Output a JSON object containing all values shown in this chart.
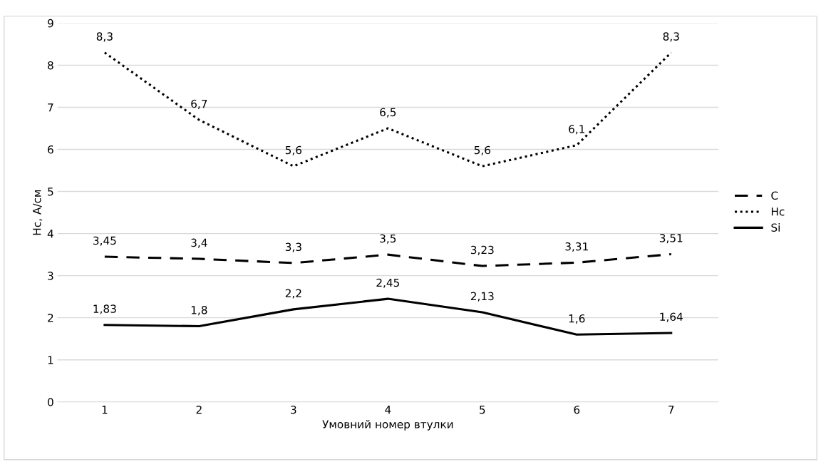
{
  "chart_data": {
    "type": "line",
    "xlabel": "Умовний номер втулки",
    "ylabel": "Hc, А/см",
    "categories": [
      "1",
      "2",
      "3",
      "4",
      "5",
      "6",
      "7"
    ],
    "series": [
      {
        "name": "C",
        "color": "#000000",
        "line_style": "dashed",
        "values": [
          3.45,
          3.4,
          3.3,
          3.5,
          3.23,
          3.31,
          3.51
        ],
        "value_labels": [
          "3,45",
          "3,4",
          "3,3",
          "3,5",
          "3,23",
          "3,31",
          "3,51"
        ]
      },
      {
        "name": "Hc",
        "color": "#000000",
        "line_style": "dotted",
        "values": [
          8.3,
          6.7,
          5.6,
          6.5,
          5.6,
          6.1,
          8.3
        ],
        "value_labels": [
          "8,3",
          "6,7",
          "5,6",
          "6,5",
          "5,6",
          "6,1",
          "8,3"
        ]
      },
      {
        "name": "Si",
        "color": "#000000",
        "line_style": "solid",
        "values": [
          1.83,
          1.8,
          2.2,
          2.45,
          2.13,
          1.6,
          1.64
        ],
        "value_labels": [
          "1,83",
          "1,8",
          "2,2",
          "2,45",
          "2,13",
          "1,6",
          "1,64"
        ]
      }
    ],
    "ylim": [
      0,
      9
    ],
    "yticks": [
      0,
      1,
      2,
      3,
      4,
      5,
      6,
      7,
      8,
      9
    ],
    "grid": "y",
    "legend": "right"
  }
}
